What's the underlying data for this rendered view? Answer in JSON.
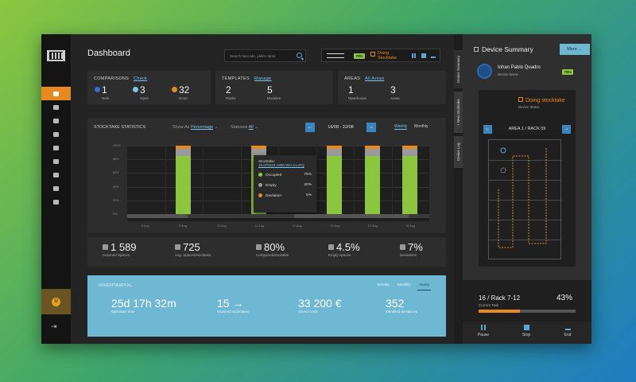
{
  "sidebar": {
    "items": [
      {
        "icon": "dashboard-icon",
        "active": true
      },
      {
        "icon": "reports-icon",
        "active": false
      },
      {
        "icon": "tools-icon",
        "active": false
      },
      {
        "icon": "truck-icon",
        "active": false
      },
      {
        "icon": "drone-icon",
        "active": false
      },
      {
        "icon": "warehouse-icon",
        "active": false
      },
      {
        "icon": "grid-icon",
        "active": false
      },
      {
        "icon": "list-icon",
        "active": false
      },
      {
        "icon": "user-icon",
        "active": false
      }
    ]
  },
  "header": {
    "title": "Dashboard",
    "search_placeholder": "Search barcode, pallet name",
    "device_battery": "79%",
    "device_status": "Doing Stocktake"
  },
  "comparisons": {
    "label": "COMPARISONS",
    "link": "Check",
    "items": [
      {
        "value": "1",
        "label": "New",
        "color": "#3a66d6"
      },
      {
        "value": "3",
        "label": "Open",
        "color": "#7cc3ee"
      },
      {
        "value": "32",
        "label": "Done",
        "color": "#e58a1f"
      }
    ]
  },
  "templates": {
    "label": "TEMPLATES",
    "link": "Manage",
    "items": [
      {
        "value": "2",
        "label": "Racks"
      },
      {
        "value": "5",
        "label": "Modules"
      }
    ]
  },
  "areas": {
    "label": "AREAS",
    "link": "All Areas",
    "items": [
      {
        "value": "1",
        "label": "Warehouse"
      },
      {
        "value": "3",
        "label": "Areas"
      }
    ]
  },
  "stocktake_stats": {
    "label": "STOCKTAKE STATISTICS",
    "show_as_label": "Show As",
    "show_as_value": "Percentage",
    "statuses_label": "Statuses",
    "statuses_value": "All",
    "date_range": "16/08 - 22/08",
    "tabs": [
      "Weekly",
      "Monthly"
    ],
    "active_tab": "Weekly",
    "popup": {
      "title": "Stocktake:",
      "id": "16.070423-1900-WH-A1-IFQ",
      "rows": [
        {
          "label": "Occupied",
          "value": "75%",
          "color": "#8cc63f"
        },
        {
          "label": "Empty",
          "value": "20%",
          "color": "#9a9a9a"
        },
        {
          "label": "Deviation",
          "value": "5%",
          "color": "#e58a1f"
        }
      ]
    }
  },
  "chart_data": {
    "type": "bar",
    "categories": [
      "8 Aug",
      "9 Aug",
      "10 Aug",
      "11 Aug",
      "12 Aug",
      "13 Aug",
      "14 Aug",
      "15 Aug"
    ],
    "ylim": [
      0,
      100
    ],
    "y_ticks": [
      "100%",
      "80%",
      "60%",
      "40%",
      "20%",
      "0%"
    ],
    "series": [
      {
        "name": "Occupied",
        "values": [
          0,
          85,
          0,
          85,
          0,
          85,
          85,
          85
        ],
        "color": "#8cc63f"
      },
      {
        "name": "Empty",
        "values": [
          0,
          10,
          0,
          10,
          0,
          10,
          10,
          10
        ],
        "color": "#9a9a9a"
      },
      {
        "name": "Deviation",
        "values": [
          0,
          5,
          0,
          5,
          0,
          5,
          5,
          5
        ],
        "color": "#e58a1f"
      }
    ]
  },
  "summary": [
    {
      "value": "1 589",
      "label": "Scanned Spaces"
    },
    {
      "value": "725",
      "label": "Avg. Spaces/stocktake"
    },
    {
      "value": "80%",
      "label": "Compared/stocktake"
    },
    {
      "value": "4.5%",
      "label": "Empty spaces"
    },
    {
      "value": "7%",
      "label": "Deviations"
    }
  ],
  "inventairyxl": {
    "name": "INVENTAIRYXL",
    "tabs": [
      "Weekly",
      "Monthly",
      "Yearly"
    ],
    "active_tab": "Yearly",
    "items": [
      {
        "value": "25d 17h 32m",
        "label": "Operation time"
      },
      {
        "value": "15 →",
        "label": "Scanned stocktakes"
      },
      {
        "value": "33 200 €",
        "label": "Saved costs"
      },
      {
        "value": "352",
        "label": "Identified deviations"
      }
    ]
  },
  "device_summary": {
    "title": "Device Summary",
    "more": "More →",
    "side_tabs": [
      "Device Summary",
      "+ New Stocktake",
      "Device Log"
    ],
    "device_name": "Iohan Pablo Quadro",
    "device_name_label": "Device Name",
    "battery": "79%",
    "status": "Doing stocktake",
    "status_label": "Device Status",
    "location": "AREA 1  /  RACK 09",
    "current_task": "16 / Rack 7-12",
    "current_task_label": "Current Task",
    "progress": "43%",
    "progress_value": 0.43,
    "actions": [
      "Pause",
      "Stop",
      "End"
    ]
  }
}
